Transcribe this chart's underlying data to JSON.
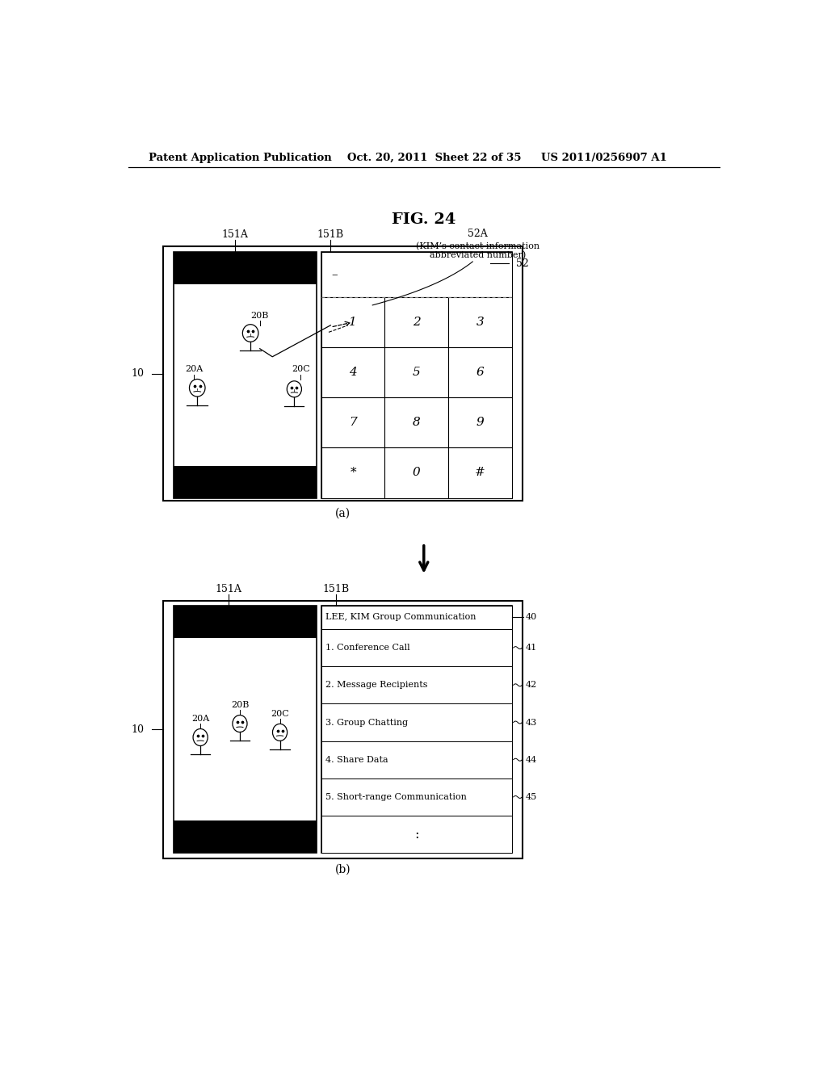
{
  "bg_color": "#ffffff",
  "header_left": "Patent Application Publication",
  "header_mid": "Oct. 20, 2011  Sheet 22 of 35",
  "header_right": "US 2011/0256907 A1",
  "fig_title": "FIG. 24",
  "panel_a_label": "(a)",
  "panel_b_label": "(b)",
  "label_10_a": "10",
  "label_10_b": "10",
  "label_151A_a": "151A",
  "label_151B_a": "151B",
  "label_151A_b": "151A",
  "label_151B_b": "151B",
  "label_52A": "52A",
  "label_52A_desc": "(KIM’s contact information\n abbreviated number)",
  "label_52": "52",
  "label_20A_a": "20A",
  "label_20B_a": "20B",
  "label_20C_a": "20C",
  "label_20A_b": "20A",
  "label_20B_b": "20B",
  "label_20C_b": "20C",
  "keypad_display": "–",
  "keypad_keys": [
    [
      "1",
      "2",
      "3"
    ],
    [
      "4",
      "5",
      "6"
    ],
    [
      "7",
      "8",
      "9"
    ],
    [
      "*",
      "0",
      "#"
    ]
  ],
  "menu_title": "LEE, KIM Group Communication",
  "menu_items": [
    "1. Conference Call",
    "2. Message Recipients",
    "3. Group Chatting",
    "4. Share Data",
    "5. Short-range Communication"
  ],
  "menu_ids": [
    "40",
    "41",
    "42",
    "43",
    "44",
    "45"
  ],
  "dots": ":",
  "font_size_header": 9.5,
  "font_size_fig": 14,
  "font_size_label": 9,
  "font_size_small": 8,
  "font_size_key": 11
}
